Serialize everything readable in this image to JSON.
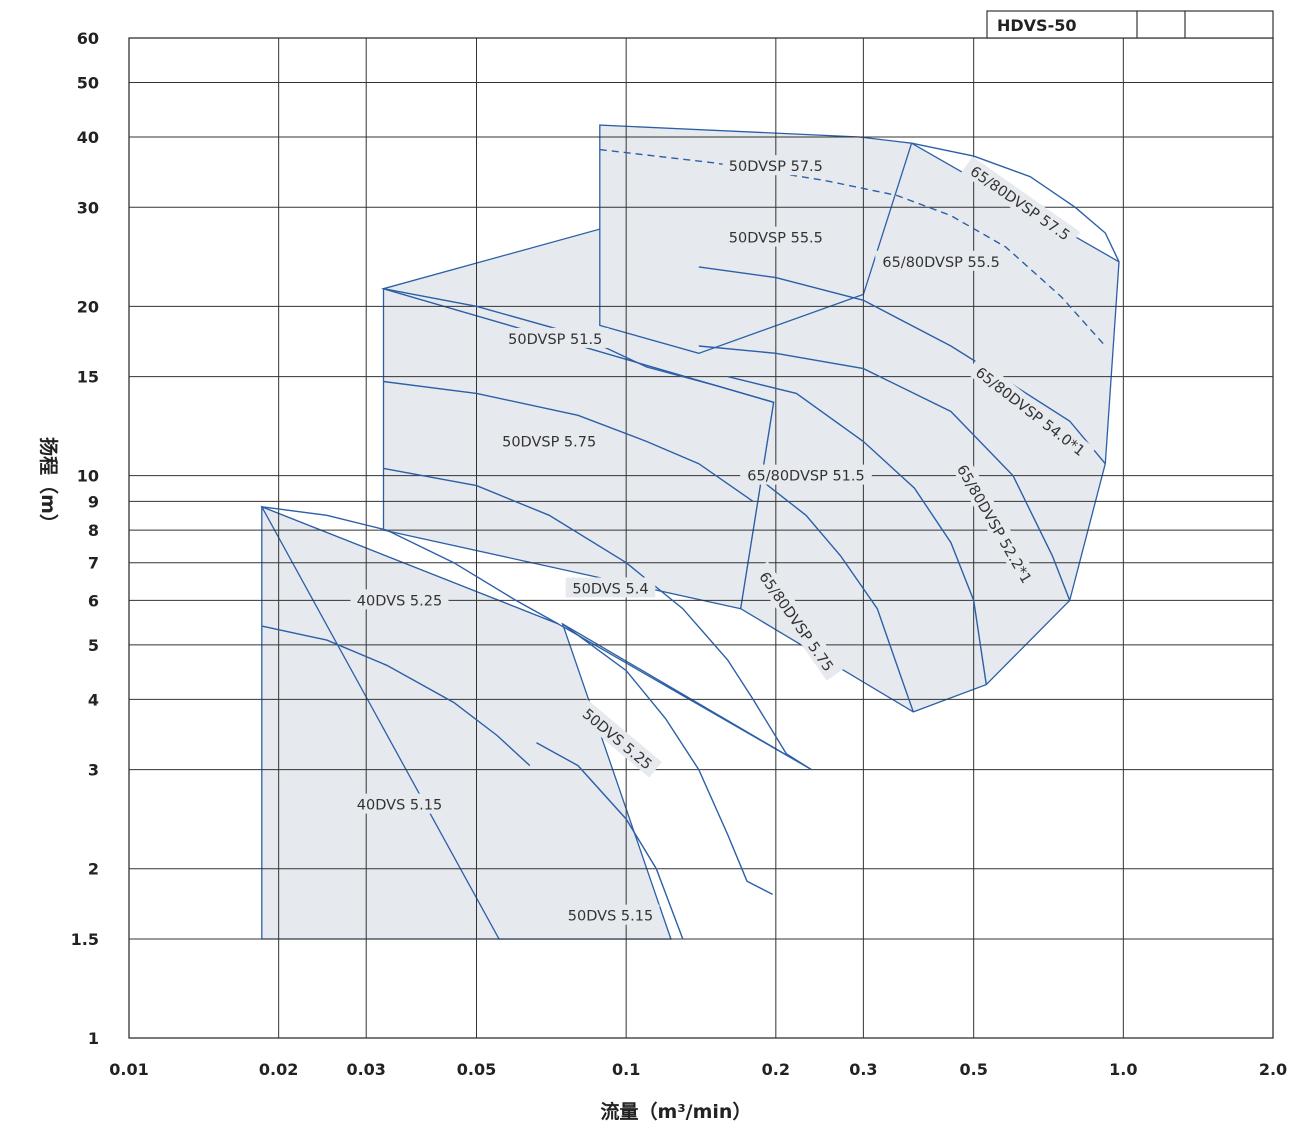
{
  "chart_data": {
    "type": "area",
    "title": "HDVS-50",
    "xlabel": "流量（m³/min）",
    "ylabel": "扬程（m）",
    "x_scale": "log",
    "y_scale": "log",
    "xlim": [
      0.01,
      2.0
    ],
    "ylim": [
      1,
      60
    ],
    "x_ticks": [
      {
        "v": 0.01,
        "label": "0.01"
      },
      {
        "v": 0.02,
        "label": "0.02"
      },
      {
        "v": 0.03,
        "label": "0.03"
      },
      {
        "v": 0.05,
        "label": "0.05"
      },
      {
        "v": 0.1,
        "label": "0.1"
      },
      {
        "v": 0.2,
        "label": "0.2"
      },
      {
        "v": 0.3,
        "label": "0.3"
      },
      {
        "v": 0.5,
        "label": "0.5"
      },
      {
        "v": 1.0,
        "label": "1.0"
      },
      {
        "v": 2.0,
        "label": "2.0"
      }
    ],
    "y_ticks": [
      {
        "v": 1,
        "label": "1"
      },
      {
        "v": 1.5,
        "label": "1.5"
      },
      {
        "v": 2,
        "label": "2"
      },
      {
        "v": 3,
        "label": "3"
      },
      {
        "v": 4,
        "label": "4"
      },
      {
        "v": 5,
        "label": "5"
      },
      {
        "v": 6,
        "label": "6"
      },
      {
        "v": 7,
        "label": "7"
      },
      {
        "v": 8,
        "label": "8"
      },
      {
        "v": 9,
        "label": "9"
      },
      {
        "v": 10,
        "label": "10"
      },
      {
        "v": 15,
        "label": "15"
      },
      {
        "v": 20,
        "label": "20"
      },
      {
        "v": 30,
        "label": "30"
      },
      {
        "v": 40,
        "label": "40"
      },
      {
        "v": 50,
        "label": "50"
      },
      {
        "v": 60,
        "label": "60"
      }
    ],
    "grid": true,
    "regions": [
      {
        "name": "40DVS",
        "points": [
          [
            0.0185,
            8.8
          ],
          [
            0.0185,
            1.5
          ],
          [
            0.123,
            1.5
          ],
          [
            0.073,
            5.45
          ]
        ],
        "models": [
          "40DVS 5.25",
          "40DVS 5.15"
        ]
      },
      {
        "name": "50DVS",
        "points": [
          [
            0.0185,
            8.8
          ],
          [
            0.073,
            5.45
          ],
          [
            0.236,
            3.0
          ],
          [
            0.0745,
            5.45
          ],
          [
            0.123,
            1.5
          ],
          [
            0.0555,
            1.5
          ]
        ],
        "models": [
          "50DVS 5.4",
          "50DVS 5.25",
          "50DVS 5.15"
        ]
      },
      {
        "name": "50DVSP",
        "points": [
          [
            0.0325,
            21.5
          ],
          [
            0.0325,
            8.0
          ],
          [
            0.17,
            5.8
          ],
          [
            0.198,
            13.5
          ]
        ],
        "models": [
          "50DVSP 51.5",
          "50DVSP 5.75"
        ]
      },
      {
        "name": "65/80DVSP",
        "points": [
          [
            0.0325,
            21.5
          ],
          [
            0.198,
            13.5
          ],
          [
            0.17,
            5.8
          ],
          [
            0.378,
            3.8
          ],
          [
            0.53,
            4.25
          ],
          [
            0.78,
            6.0
          ],
          [
            0.92,
            10.5
          ],
          [
            0.98,
            24.0
          ],
          [
            0.375,
            39.0
          ]
        ],
        "models": [
          "65/80DVSP 5.75",
          "65/80DVSP 51.5",
          "65/80DVSP 52.2",
          "65/80DVSP 54.0",
          "65/80DVSP 55.5",
          "65/80DVSP 57.5"
        ]
      },
      {
        "name": "50DVSP upper",
        "points": [
          [
            0.0885,
            18.5
          ],
          [
            0.0885,
            42.0
          ],
          [
            0.295,
            40.0
          ],
          [
            0.375,
            39.0
          ],
          [
            0.3,
            21.0
          ],
          [
            0.14,
            16.5
          ]
        ],
        "models": [
          "50DVSP 57.5",
          "50DVSP 55.5"
        ]
      }
    ],
    "curves": [
      {
        "name": "40DVS 5.25",
        "points": [
          [
            0.0185,
            8.8
          ],
          [
            0.025,
            8.5
          ],
          [
            0.033,
            8.0
          ],
          [
            0.045,
            7.0
          ],
          [
            0.06,
            6.0
          ],
          [
            0.073,
            5.45
          ]
        ]
      },
      {
        "name": "40DVS 5.15",
        "points": [
          [
            0.0185,
            5.4
          ],
          [
            0.025,
            5.1
          ],
          [
            0.033,
            4.6
          ],
          [
            0.045,
            3.95
          ],
          [
            0.055,
            3.45
          ],
          [
            0.064,
            3.05
          ]
        ]
      },
      {
        "name": "50DVS 5.4",
        "points": [
          [
            0.0325,
            10.3
          ],
          [
            0.05,
            9.6
          ],
          [
            0.07,
            8.5
          ],
          [
            0.1,
            7.0
          ],
          [
            0.13,
            5.8
          ],
          [
            0.16,
            4.7
          ],
          [
            0.18,
            4.0
          ],
          [
            0.21,
            3.2
          ],
          [
            0.236,
            3.0
          ]
        ]
      },
      {
        "name": "50DVS 5.25",
        "points": [
          [
            0.0745,
            5.45
          ],
          [
            0.1,
            4.5
          ],
          [
            0.12,
            3.7
          ],
          [
            0.14,
            3.0
          ],
          [
            0.16,
            2.3
          ],
          [
            0.175,
            1.9
          ],
          [
            0.197,
            1.8
          ]
        ]
      },
      {
        "name": "50DVS 5.15",
        "points": [
          [
            0.066,
            3.35
          ],
          [
            0.08,
            3.05
          ],
          [
            0.1,
            2.45
          ],
          [
            0.115,
            2.0
          ],
          [
            0.13,
            1.5
          ]
        ]
      },
      {
        "name": "50DVSP 51.5",
        "points": [
          [
            0.0325,
            21.5
          ],
          [
            0.05,
            20.0
          ],
          [
            0.08,
            17.8
          ],
          [
            0.11,
            15.6
          ],
          [
            0.15,
            14.5
          ],
          [
            0.198,
            13.5
          ]
        ]
      },
      {
        "name": "50DVSP 5.75",
        "points": [
          [
            0.0325,
            14.7
          ],
          [
            0.05,
            14.0
          ],
          [
            0.08,
            12.8
          ],
          [
            0.11,
            11.5
          ],
          [
            0.14,
            10.5
          ],
          [
            0.18,
            9.0
          ]
        ]
      },
      {
        "name": "65/80DVSP 5.75",
        "points": [
          [
            0.19,
            9.7
          ],
          [
            0.23,
            8.5
          ],
          [
            0.27,
            7.2
          ],
          [
            0.32,
            5.8
          ],
          [
            0.36,
            4.3
          ],
          [
            0.378,
            3.8
          ]
        ]
      },
      {
        "name": "65/80DVSP 51.5",
        "points": [
          [
            0.16,
            15.0
          ],
          [
            0.22,
            14.0
          ],
          [
            0.3,
            11.5
          ],
          [
            0.38,
            9.5
          ],
          [
            0.45,
            7.6
          ],
          [
            0.5,
            6.0
          ],
          [
            0.53,
            4.25
          ]
        ]
      },
      {
        "name": "65/80DVSP 52.2",
        "points": [
          [
            0.14,
            17.0
          ],
          [
            0.2,
            16.5
          ],
          [
            0.3,
            15.5
          ],
          [
            0.45,
            13.0
          ],
          [
            0.6,
            10.0
          ],
          [
            0.72,
            7.2
          ],
          [
            0.78,
            6.0
          ]
        ]
      },
      {
        "name": "65/80DVSP 54.0",
        "points": [
          [
            0.14,
            23.5
          ],
          [
            0.2,
            22.5
          ],
          [
            0.3,
            20.5
          ],
          [
            0.45,
            17.0
          ],
          [
            0.6,
            14.5
          ],
          [
            0.78,
            12.5
          ],
          [
            0.92,
            10.5
          ]
        ]
      },
      {
        "name": "65/80DVSP 55.5 boundary",
        "points": [
          [
            0.375,
            39.0
          ],
          [
            0.5,
            37.0
          ],
          [
            0.65,
            34.0
          ],
          [
            0.8,
            30.0
          ],
          [
            0.92,
            27.0
          ],
          [
            0.98,
            24.0
          ]
        ]
      },
      {
        "name": "50DVSP 57.5 dashed",
        "dashed": true,
        "points": [
          [
            0.0885,
            38.0
          ],
          [
            0.15,
            36.0
          ],
          [
            0.25,
            33.5
          ],
          [
            0.35,
            31.5
          ],
          [
            0.45,
            29.0
          ],
          [
            0.58,
            25.5
          ],
          [
            0.75,
            20.8
          ],
          [
            0.92,
            17.0
          ]
        ]
      }
    ],
    "labels": [
      {
        "text": "40DVS 5.25",
        "x": 0.035,
        "y": 6.0
      },
      {
        "text": "40DVS 5.15",
        "x": 0.035,
        "y": 2.6
      },
      {
        "text": "50DVS 5.4",
        "x": 0.093,
        "y": 6.3
      },
      {
        "text": "50DVS 5.25",
        "x": 0.096,
        "y": 3.4,
        "rotate": 40
      },
      {
        "text": "50DVS 5.15",
        "x": 0.093,
        "y": 1.65
      },
      {
        "text": "50DVSP 51.5",
        "x": 0.072,
        "y": 17.5
      },
      {
        "text": "50DVSP 5.75",
        "x": 0.07,
        "y": 11.5
      },
      {
        "text": "50DVSP 57.5",
        "x": 0.2,
        "y": 35.5
      },
      {
        "text": "50DVSP 55.5",
        "x": 0.2,
        "y": 26.5
      },
      {
        "text": "65/80DVSP 5.75",
        "x": 0.22,
        "y": 5.5,
        "rotate": 55
      },
      {
        "text": "65/80DVSP 51.5",
        "x": 0.23,
        "y": 10.0
      },
      {
        "text": "65/80DVSP 52.2*1",
        "x": 0.55,
        "y": 8.2,
        "rotate": 60
      },
      {
        "text": "65/80DVSP 54.0*1",
        "x": 0.65,
        "y": 13.0,
        "rotate": 38
      },
      {
        "text": "65/80DVSP 55.5",
        "x": 0.43,
        "y": 24.0
      },
      {
        "text": "65/80DVSP 57.5",
        "x": 0.62,
        "y": 30.5,
        "rotate": 35
      }
    ],
    "colors": {
      "region_fill": "#e6eaee",
      "curve": "#2c5fa8",
      "grid": "#333333"
    }
  },
  "model_box": {
    "title": "HDVS-50"
  },
  "superscript_mark": "*1"
}
